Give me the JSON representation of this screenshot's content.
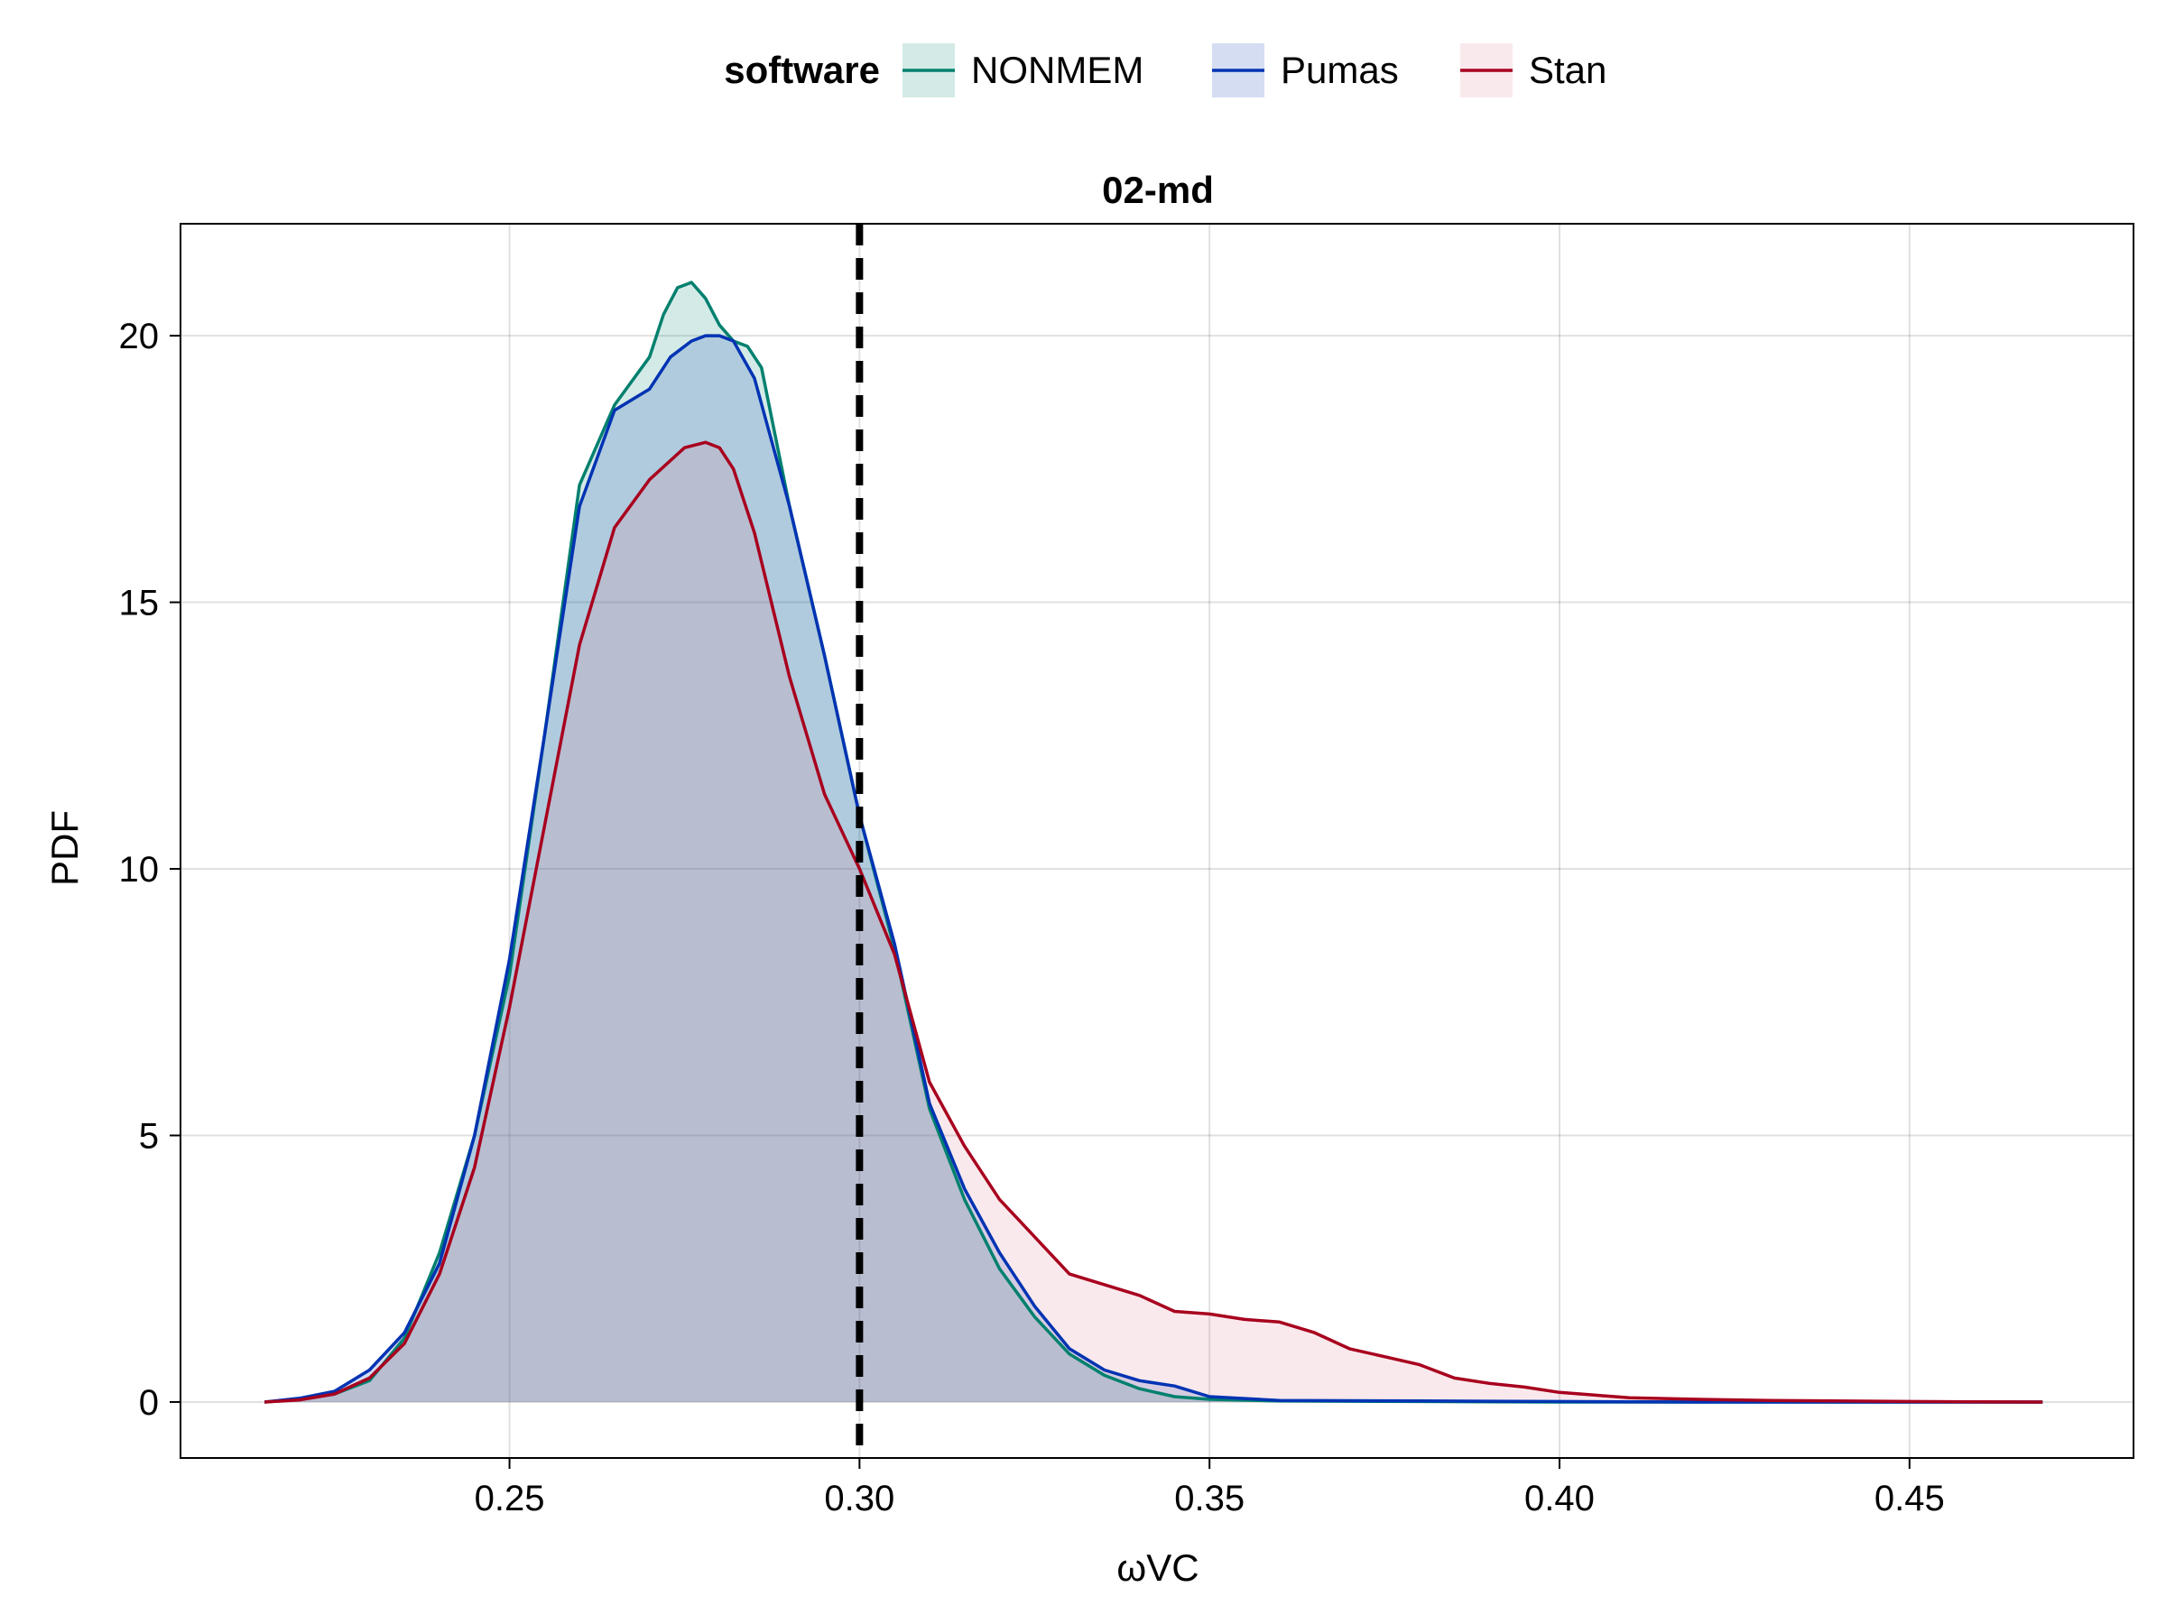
{
  "chart_data": {
    "type": "area",
    "title": "02-md",
    "xlabel": "ωVC",
    "ylabel": "PDF",
    "xlim": [
      0.203,
      0.482
    ],
    "ylim": [
      -1.05,
      22.1
    ],
    "x_ticks": [
      0.25,
      0.3,
      0.35,
      0.4,
      0.45
    ],
    "x_tick_labels": [
      "0.25",
      "0.30",
      "0.35",
      "0.40",
      "0.45"
    ],
    "y_ticks": [
      0,
      5,
      10,
      15,
      20
    ],
    "y_tick_labels": [
      "0",
      "5",
      "10",
      "15",
      "20"
    ],
    "grid": true,
    "legend": {
      "title": "software",
      "placement": "top-center",
      "entries": [
        "NONMEM",
        "Pumas",
        "Stan"
      ]
    },
    "reference_line": {
      "x": 0.3,
      "style": "dashed",
      "color": "#000000"
    },
    "series": [
      {
        "name": "NONMEM",
        "color": "#00806e",
        "fill": "#00806e",
        "x": [
          0.215,
          0.22,
          0.225,
          0.23,
          0.235,
          0.24,
          0.245,
          0.25,
          0.255,
          0.26,
          0.265,
          0.27,
          0.272,
          0.274,
          0.276,
          0.278,
          0.28,
          0.282,
          0.284,
          0.286,
          0.29,
          0.295,
          0.3,
          0.305,
          0.31,
          0.315,
          0.32,
          0.325,
          0.33,
          0.335,
          0.34,
          0.345,
          0.35,
          0.36,
          0.38,
          0.4,
          0.42,
          0.469
        ],
        "y": [
          0.0,
          0.05,
          0.15,
          0.4,
          1.2,
          2.8,
          5.0,
          8.0,
          12.5,
          17.2,
          18.7,
          19.6,
          20.4,
          20.9,
          21.0,
          20.7,
          20.2,
          19.9,
          19.8,
          19.4,
          16.8,
          14.0,
          11.0,
          8.5,
          5.5,
          3.8,
          2.5,
          1.6,
          0.9,
          0.5,
          0.25,
          0.1,
          0.05,
          0.02,
          0.01,
          0.0,
          0.0,
          0.0
        ]
      },
      {
        "name": "Pumas",
        "color": "#0033b3",
        "fill": "#0033b3",
        "x": [
          0.215,
          0.22,
          0.225,
          0.23,
          0.235,
          0.24,
          0.245,
          0.25,
          0.255,
          0.26,
          0.265,
          0.27,
          0.273,
          0.276,
          0.278,
          0.28,
          0.282,
          0.285,
          0.29,
          0.295,
          0.3,
          0.305,
          0.31,
          0.315,
          0.32,
          0.325,
          0.33,
          0.335,
          0.34,
          0.345,
          0.35,
          0.36,
          0.38,
          0.4,
          0.42,
          0.469
        ],
        "y": [
          0.0,
          0.07,
          0.2,
          0.6,
          1.3,
          2.6,
          5.0,
          8.3,
          12.5,
          16.8,
          18.6,
          19.0,
          19.6,
          19.9,
          20.0,
          20.0,
          19.9,
          19.2,
          16.8,
          14.0,
          11.0,
          8.6,
          5.6,
          4.0,
          2.8,
          1.8,
          1.0,
          0.6,
          0.4,
          0.3,
          0.1,
          0.03,
          0.02,
          0.01,
          0.0,
          0.0
        ]
      },
      {
        "name": "Stan",
        "color": "#a8001e",
        "fill": "#e07a8e",
        "x": [
          0.215,
          0.22,
          0.225,
          0.23,
          0.235,
          0.24,
          0.245,
          0.25,
          0.255,
          0.26,
          0.265,
          0.27,
          0.275,
          0.278,
          0.28,
          0.282,
          0.285,
          0.29,
          0.295,
          0.3,
          0.305,
          0.31,
          0.315,
          0.32,
          0.325,
          0.33,
          0.335,
          0.34,
          0.345,
          0.35,
          0.355,
          0.36,
          0.365,
          0.37,
          0.375,
          0.38,
          0.385,
          0.39,
          0.395,
          0.4,
          0.405,
          0.41,
          0.42,
          0.43,
          0.45,
          0.469
        ],
        "y": [
          0.0,
          0.04,
          0.15,
          0.45,
          1.1,
          2.4,
          4.4,
          7.4,
          10.8,
          14.2,
          16.4,
          17.3,
          17.9,
          18.0,
          17.9,
          17.5,
          16.3,
          13.6,
          11.4,
          10.0,
          8.4,
          6.0,
          4.8,
          3.8,
          3.1,
          2.4,
          2.2,
          2.0,
          1.7,
          1.65,
          1.55,
          1.5,
          1.3,
          1.0,
          0.85,
          0.7,
          0.45,
          0.35,
          0.28,
          0.18,
          0.13,
          0.08,
          0.05,
          0.03,
          0.01,
          0.0
        ]
      }
    ]
  }
}
